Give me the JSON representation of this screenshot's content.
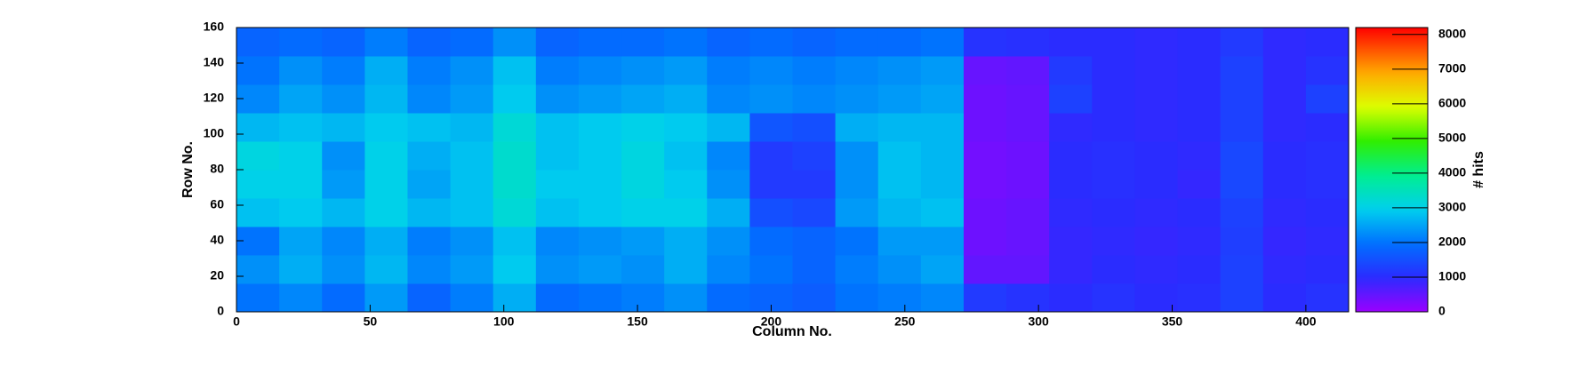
{
  "chart_data": {
    "type": "heatmap",
    "x_label": "Column No.",
    "y_label": "Row No.",
    "z_label": "# hits",
    "xbins": [
      0,
      16,
      32,
      48,
      64,
      80,
      96,
      112,
      128,
      144,
      160,
      176,
      192,
      208,
      224,
      240,
      256,
      272,
      288,
      304,
      320,
      336,
      352,
      368,
      384,
      400,
      416
    ],
    "ybins": [
      0,
      16,
      32,
      48,
      64,
      80,
      96,
      112,
      128,
      144,
      160
    ],
    "values": [
      [
        2000,
        2200,
        1900,
        2400,
        1800,
        2100,
        2600,
        1900,
        2000,
        2100,
        2300,
        1900,
        1800,
        1700,
        2000,
        2100,
        2200,
        1200,
        1100,
        1000,
        1100,
        1000,
        1050,
        1300,
        1000,
        1100
      ],
      [
        2300,
        2600,
        2300,
        2700,
        2200,
        2400,
        2900,
        2300,
        2400,
        2300,
        2600,
        2200,
        2000,
        1800,
        2100,
        2300,
        2500,
        500,
        500,
        900,
        1000,
        950,
        1000,
        1300,
        950,
        1000
      ],
      [
        2000,
        2500,
        2200,
        2600,
        2100,
        2300,
        2800,
        2200,
        2300,
        2400,
        2600,
        2300,
        1900,
        1800,
        2000,
        2400,
        2400,
        400,
        450,
        900,
        950,
        900,
        950,
        1250,
        900,
        950
      ],
      [
        2800,
        2900,
        2700,
        3000,
        2700,
        2800,
        3200,
        2800,
        2900,
        3000,
        3000,
        2600,
        1500,
        1400,
        2400,
        2700,
        2800,
        400,
        450,
        950,
        1000,
        950,
        1000,
        1300,
        950,
        1000
      ],
      [
        3000,
        3000,
        2400,
        3000,
        2500,
        2800,
        3300,
        2900,
        2900,
        3100,
        2900,
        2300,
        1200,
        1200,
        2300,
        2800,
        2700,
        350,
        400,
        1000,
        1050,
        1000,
        900,
        1400,
        1000,
        1050
      ],
      [
        3100,
        3000,
        2300,
        3000,
        2600,
        2800,
        3300,
        2800,
        2900,
        3100,
        2800,
        2200,
        1200,
        1300,
        2300,
        2800,
        2700,
        350,
        400,
        1000,
        1050,
        1000,
        950,
        1400,
        1000,
        1050
      ],
      [
        2700,
        2800,
        2700,
        2900,
        2800,
        2700,
        3200,
        2800,
        2900,
        3000,
        2900,
        2700,
        1600,
        1500,
        2600,
        2700,
        2700,
        400,
        450,
        950,
        1000,
        950,
        1000,
        1300,
        950,
        1000
      ],
      [
        2200,
        2500,
        2300,
        2700,
        2200,
        2400,
        2900,
        2300,
        2400,
        2500,
        2600,
        2200,
        2300,
        2200,
        2300,
        2400,
        2500,
        400,
        450,
        1300,
        1000,
        950,
        1000,
        1300,
        950,
        1300
      ],
      [
        2000,
        2300,
        2100,
        2600,
        2100,
        2300,
        2800,
        2100,
        2200,
        2300,
        2400,
        2100,
        2200,
        2100,
        2200,
        2300,
        2400,
        450,
        500,
        1200,
        1000,
        950,
        1000,
        1300,
        950,
        1100
      ],
      [
        1800,
        1900,
        1800,
        2100,
        1800,
        1900,
        2300,
        1800,
        1900,
        1900,
        2000,
        1800,
        1900,
        1800,
        1900,
        1900,
        2000,
        1100,
        1050,
        1000,
        1000,
        950,
        1000,
        1200,
        950,
        1000
      ]
    ],
    "xlim": [
      0,
      416
    ],
    "ylim": [
      0,
      160
    ],
    "zlim": [
      0,
      8200
    ],
    "xticks": [
      0,
      50,
      100,
      150,
      200,
      250,
      300,
      350,
      400
    ],
    "yticks": [
      0,
      20,
      40,
      60,
      80,
      100,
      120,
      140,
      160
    ],
    "zticks": [
      0,
      1000,
      2000,
      3000,
      4000,
      5000,
      6000,
      7000,
      8000
    ]
  }
}
